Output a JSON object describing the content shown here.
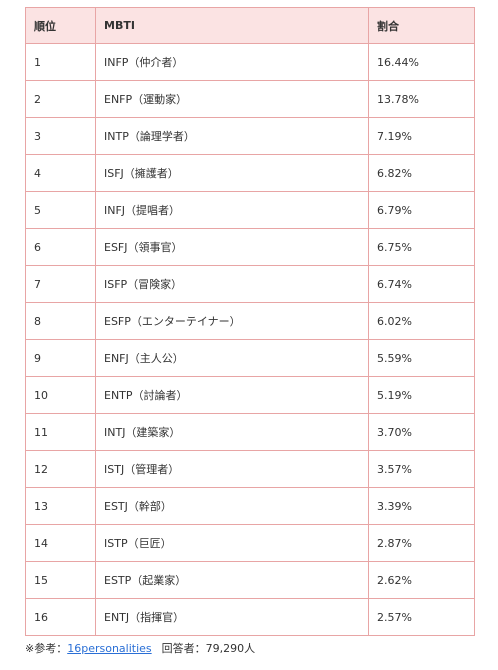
{
  "table": {
    "headers": {
      "rank": "順位",
      "mbti": "MBTI",
      "percent": "割合"
    },
    "rows": [
      {
        "rank": "1",
        "mbti": "INFP（仲介者）",
        "percent": "16.44%"
      },
      {
        "rank": "2",
        "mbti": "ENFP（運動家）",
        "percent": "13.78%"
      },
      {
        "rank": "3",
        "mbti": "INTP（論理学者）",
        "percent": "7.19%"
      },
      {
        "rank": "4",
        "mbti": "ISFJ（擁護者）",
        "percent": "6.82%"
      },
      {
        "rank": "5",
        "mbti": "INFJ（提唱者）",
        "percent": "6.79%"
      },
      {
        "rank": "6",
        "mbti": "ESFJ（領事官）",
        "percent": "6.75%"
      },
      {
        "rank": "7",
        "mbti": "ISFP（冒険家）",
        "percent": "6.74%"
      },
      {
        "rank": "8",
        "mbti": "ESFP（エンターテイナー）",
        "percent": "6.02%"
      },
      {
        "rank": "9",
        "mbti": "ENFJ（主人公）",
        "percent": "5.59%"
      },
      {
        "rank": "10",
        "mbti": "ENTP（討論者）",
        "percent": "5.19%"
      },
      {
        "rank": "11",
        "mbti": "INTJ（建築家）",
        "percent": "3.70%"
      },
      {
        "rank": "12",
        "mbti": "ISTJ（管理者）",
        "percent": "3.57%"
      },
      {
        "rank": "13",
        "mbti": "ESTJ（幹部）",
        "percent": "3.39%"
      },
      {
        "rank": "14",
        "mbti": "ISTP（巨匠）",
        "percent": "2.87%"
      },
      {
        "rank": "15",
        "mbti": "ESTP（起業家）",
        "percent": "2.62%"
      },
      {
        "rank": "16",
        "mbti": "ENTJ（指揮官）",
        "percent": "2.57%"
      }
    ]
  },
  "note": {
    "prefix": "※参考：",
    "link_text": "16personalities",
    "respondents": "回答者：79,290人"
  },
  "colors": {
    "border": "#e8a5a5",
    "header_bg": "#fbe3e3",
    "link": "#2a6fd6"
  }
}
